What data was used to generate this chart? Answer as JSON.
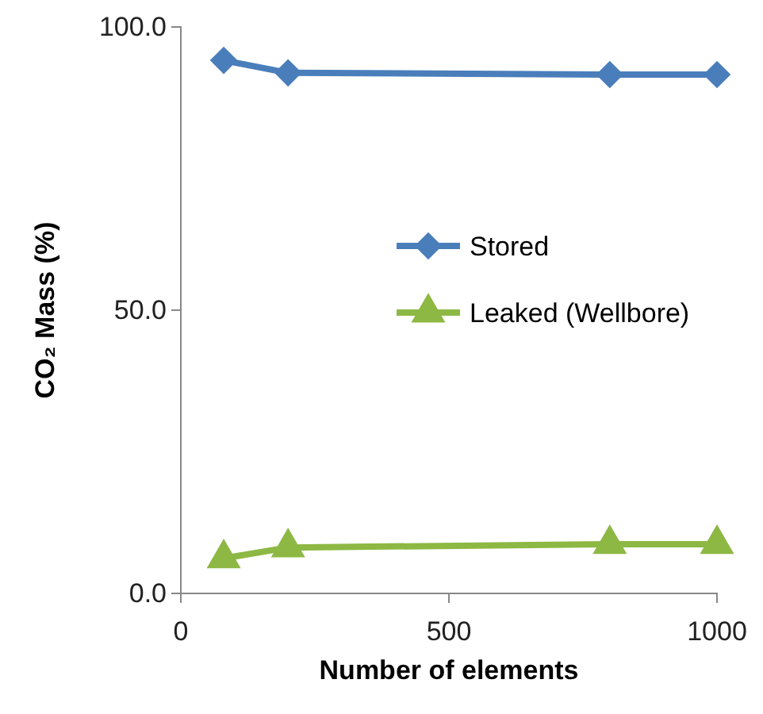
{
  "chart_data": {
    "type": "line",
    "xlabel": "Number of elements",
    "ylabel": "CO₂ Mass (%)",
    "xlim": [
      0,
      1000
    ],
    "xticks": [
      0,
      500,
      1000
    ],
    "ylim": [
      0,
      100
    ],
    "yticks": [
      {
        "value": 0,
        "label": "0.0"
      },
      {
        "value": 50,
        "label": "50.0"
      },
      {
        "value": 100,
        "label": "100.0"
      }
    ],
    "x": [
      80,
      200,
      800,
      1000
    ],
    "series": [
      {
        "name": "Stored",
        "color": "#4a7ebb",
        "marker": "diamond",
        "values": [
          94.1,
          91.9,
          91.6,
          91.6
        ]
      },
      {
        "name": "Leaked (Wellbore)",
        "color": "#8db843",
        "marker": "triangle",
        "values": [
          6.2,
          8.1,
          8.7,
          8.7
        ]
      }
    ],
    "legend": "right",
    "grid": false,
    "line_style": "solid"
  }
}
